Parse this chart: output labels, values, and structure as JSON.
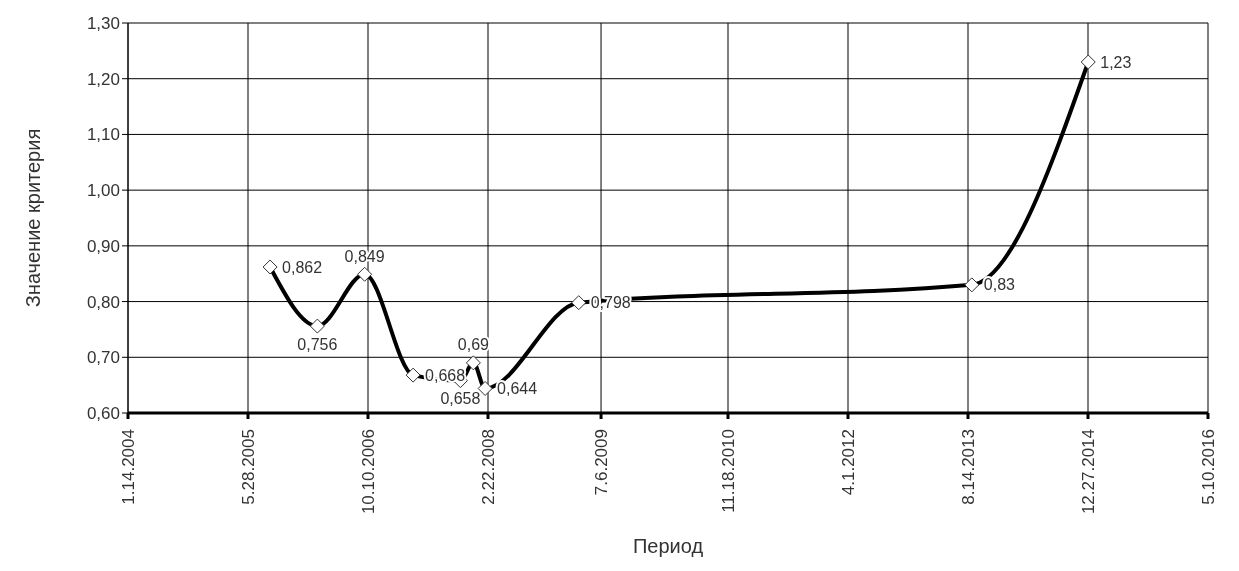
{
  "chart_data": {
    "type": "line",
    "xlabel": "Период",
    "ylabel": "Значение критерия",
    "x": [
      "2005-08-28",
      "2006-03-13",
      "2006-09-26",
      "2007-04-16",
      "2007-10-30",
      "2007-12-23",
      "2008-02-10",
      "2009-03-06",
      "2013-08-30",
      "2014-12-28"
    ],
    "series": [
      {
        "color": "#000000",
        "values": [
          0.862,
          0.756,
          0.849,
          0.668,
          0.658,
          0.69,
          0.644,
          0.798,
          0.83,
          1.23
        ],
        "value_labels": [
          "0,862",
          "0,756",
          "0,849",
          "0,668",
          "0,658",
          "0,69",
          "0,644",
          "0,798",
          "0,83",
          "1,23"
        ]
      }
    ],
    "xlim": [
      "2004-01-14",
      "2016-05-10"
    ],
    "xticks": [
      {
        "value": "2004-01-14",
        "label": "1.14.2004"
      },
      {
        "value": "2005-05-28",
        "label": "5.28.2005"
      },
      {
        "value": "2006-10-10",
        "label": "10.10.2006"
      },
      {
        "value": "2008-02-22",
        "label": "2.22.2008"
      },
      {
        "value": "2009-06-07",
        "label": "7.6.2009"
      },
      {
        "value": "2010-11-18",
        "label": "11.18.2010"
      },
      {
        "value": "2012-04-01",
        "label": "4.1.2012"
      },
      {
        "value": "2013-08-14",
        "label": "8.14.2013"
      },
      {
        "value": "2014-12-27",
        "label": "12.27.2014"
      },
      {
        "value": "2016-05-10",
        "label": "5.10.2016"
      }
    ],
    "ylim": [
      0.6,
      1.3
    ],
    "yticks": [
      {
        "value": 0.6,
        "label": "0,60"
      },
      {
        "value": 0.7,
        "label": "0,70"
      },
      {
        "value": 0.8,
        "label": "0,80"
      },
      {
        "value": 0.9,
        "label": "0,90"
      },
      {
        "value": 1.0,
        "label": "1,00"
      },
      {
        "value": 1.1,
        "label": "1,10"
      },
      {
        "value": 1.2,
        "label": "1,20"
      },
      {
        "value": 1.3,
        "label": "1,30"
      }
    ],
    "grid": true,
    "marker": "diamond",
    "line_style": "solid"
  }
}
